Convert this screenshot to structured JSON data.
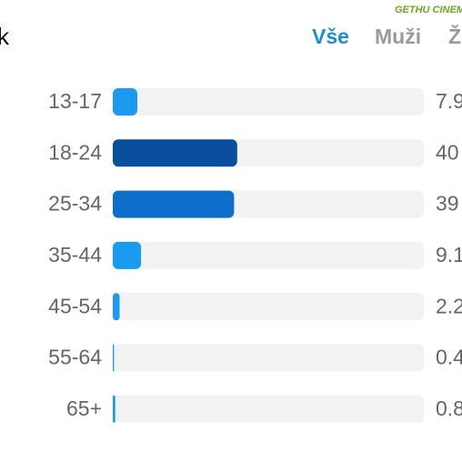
{
  "header": {
    "title": "k",
    "tabs": [
      "Vše",
      "Muži",
      "Ž"
    ],
    "watermark": "GETHU CINEMA"
  },
  "chart_data": {
    "type": "hbar",
    "categories": [
      "13-17",
      "18-24",
      "25-34",
      "35-44",
      "45-54",
      "55-64",
      "65+"
    ],
    "values": [
      7.9,
      40,
      39,
      9.1,
      2.2,
      0.4,
      0.8
    ],
    "colors": [
      "#1a9bf0",
      "#0a4f9e",
      "#0d6fc9",
      "#1a9bf0",
      "#1a9bf0",
      "#1a9bf0",
      "#1a9bf0"
    ],
    "xlim": [
      0,
      100
    ]
  }
}
